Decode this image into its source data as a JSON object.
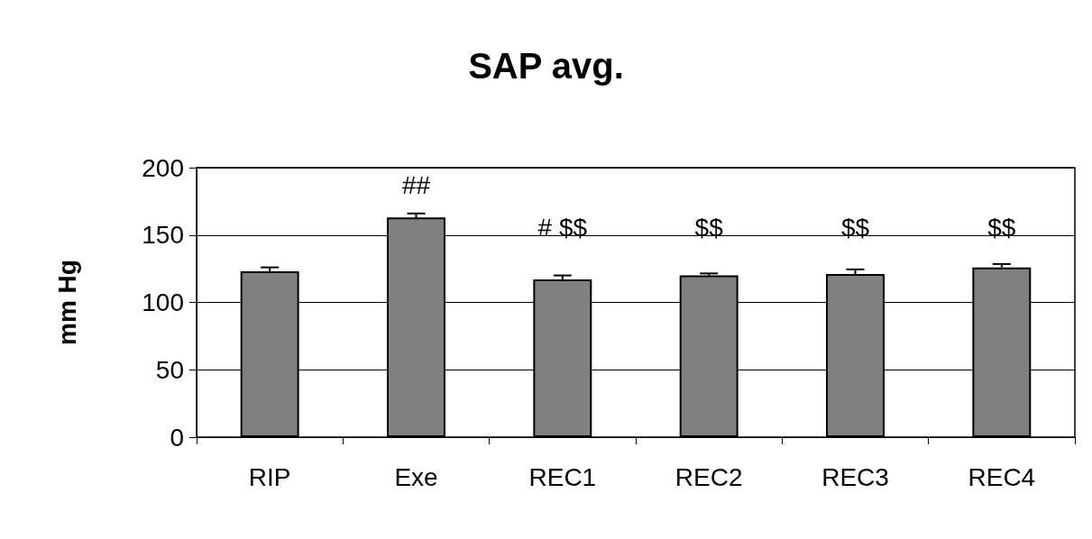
{
  "chart_data": {
    "type": "bar",
    "title": "SAP avg.",
    "ylabel": "mm Hg",
    "categories": [
      "RIP",
      "Exe",
      "REC1",
      "REC2",
      "REC3",
      "REC4"
    ],
    "values": [
      123,
      163,
      117,
      120,
      121,
      126
    ],
    "errors": [
      [
        123,
        126
      ],
      [
        163,
        166
      ],
      [
        117,
        120
      ],
      [
        120,
        121.5
      ],
      [
        121,
        124.5
      ],
      [
        126,
        128.5
      ]
    ],
    "color": "#808080",
    "ylim": [
      0,
      200
    ],
    "yticks": [
      0,
      50,
      100,
      150,
      200
    ],
    "grid": "y",
    "annotations": [
      "##",
      "# $$",
      "$$",
      "$$",
      "$$"
    ]
  }
}
